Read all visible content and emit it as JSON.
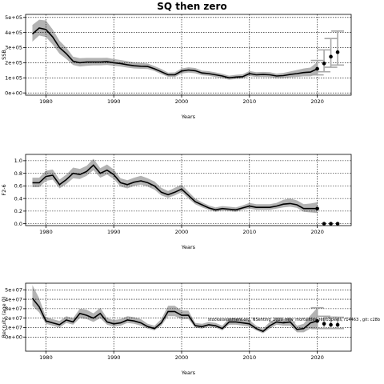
{
  "figure_title": "SQ then zero",
  "footnote": "stockassessment.org, NSehting_2020_new_mortalities_retro3peels, r14463 , git: c28b",
  "chart_data": [
    {
      "type": "line",
      "ylabel": "SSB",
      "xlabel": "Years",
      "xlim": [
        1977,
        2025
      ],
      "ylim": [
        -15000,
        520000
      ],
      "grid": true,
      "xticks": [
        1980,
        1990,
        2000,
        2010,
        2020
      ],
      "xtick_labels": [
        "1980",
        "1990",
        "2000",
        "2010",
        "2020"
      ],
      "yticks": [
        0,
        100000,
        200000,
        300000,
        400000,
        500000
      ],
      "ytick_labels": [
        "0e+00",
        "1e+05",
        "2e+05",
        "3e+05",
        "4e+05",
        "5e+05"
      ],
      "x": [
        1978,
        1979,
        1980,
        1981,
        1982,
        1983,
        1984,
        1985,
        1986,
        1987,
        1988,
        1989,
        1990,
        1991,
        1992,
        1993,
        1994,
        1995,
        1996,
        1997,
        1998,
        1999,
        2000,
        2001,
        2002,
        2003,
        2004,
        2005,
        2006,
        2007,
        2008,
        2009,
        2010,
        2011,
        2012,
        2013,
        2014,
        2015,
        2016,
        2017,
        2018,
        2019,
        2020
      ],
      "y": [
        390000,
        430000,
        420000,
        370000,
        300000,
        260000,
        210000,
        200000,
        205000,
        205000,
        205000,
        207000,
        200000,
        195000,
        187000,
        180000,
        177000,
        175000,
        160000,
        140000,
        120000,
        120000,
        145000,
        152000,
        147000,
        132000,
        128000,
        120000,
        112000,
        100000,
        105000,
        108000,
        128000,
        120000,
        122000,
        120000,
        112000,
        115000,
        122000,
        128000,
        135000,
        138000,
        160000
      ],
      "lower": [
        340000,
        380000,
        370000,
        320000,
        260000,
        225000,
        185000,
        175000,
        180000,
        182000,
        182000,
        185000,
        180000,
        175000,
        168000,
        162000,
        160000,
        158000,
        145000,
        125000,
        107000,
        106000,
        128000,
        135000,
        130000,
        117000,
        113000,
        106000,
        98000,
        88000,
        92000,
        95000,
        112000,
        105000,
        106000,
        104000,
        97000,
        98000,
        103000,
        106000,
        110000,
        110000,
        125000
      ],
      "upper": [
        450000,
        485000,
        480000,
        420000,
        345000,
        300000,
        240000,
        230000,
        232000,
        232000,
        232000,
        233000,
        225000,
        218000,
        210000,
        202000,
        198000,
        195000,
        178000,
        158000,
        135000,
        136000,
        162000,
        170000,
        165000,
        148000,
        144000,
        136000,
        127000,
        114000,
        120000,
        124000,
        145000,
        137000,
        139000,
        137000,
        128000,
        133000,
        142000,
        152000,
        162000,
        168000,
        205000
      ],
      "forecast_x": [
        2020,
        2021,
        2022,
        2023
      ],
      "forecast_y": [
        160000,
        195000,
        240000,
        270000
      ],
      "forecast_lower": [
        120000,
        140000,
        170000,
        185000
      ],
      "forecast_upper": [
        215000,
        285000,
        360000,
        410000
      ]
    },
    {
      "type": "line",
      "ylabel": "F2-6",
      "xlabel": "Years",
      "xlim": [
        1977,
        2025
      ],
      "ylim": [
        -0.03,
        1.1
      ],
      "grid": true,
      "xticks": [
        1980,
        1990,
        2000,
        2010,
        2020
      ],
      "xtick_labels": [
        "1980",
        "1990",
        "2000",
        "2010",
        "2020"
      ],
      "yticks": [
        0,
        0.2,
        0.4,
        0.6,
        0.8,
        1.0
      ],
      "ytick_labels": [
        "0.0",
        "0.2",
        "0.4",
        "0.6",
        "0.8",
        "1.0"
      ],
      "x": [
        1978,
        1979,
        1980,
        1981,
        1982,
        1983,
        1984,
        1985,
        1986,
        1987,
        1988,
        1989,
        1990,
        1991,
        1992,
        1993,
        1994,
        1995,
        1996,
        1997,
        1998,
        1999,
        2000,
        2001,
        2002,
        2003,
        2004,
        2005,
        2006,
        2007,
        2008,
        2009,
        2010,
        2011,
        2012,
        2013,
        2014,
        2015,
        2016,
        2017,
        2018,
        2019,
        2020
      ],
      "y": [
        0.65,
        0.65,
        0.75,
        0.77,
        0.62,
        0.7,
        0.8,
        0.78,
        0.83,
        0.93,
        0.8,
        0.85,
        0.78,
        0.65,
        0.62,
        0.66,
        0.68,
        0.65,
        0.6,
        0.5,
        0.46,
        0.5,
        0.55,
        0.45,
        0.35,
        0.3,
        0.25,
        0.22,
        0.24,
        0.23,
        0.22,
        0.25,
        0.28,
        0.26,
        0.26,
        0.26,
        0.28,
        0.31,
        0.32,
        0.3,
        0.24,
        0.24,
        0.24
      ],
      "lower": [
        0.58,
        0.58,
        0.68,
        0.7,
        0.56,
        0.63,
        0.72,
        0.71,
        0.76,
        0.85,
        0.73,
        0.78,
        0.71,
        0.59,
        0.56,
        0.6,
        0.62,
        0.59,
        0.54,
        0.45,
        0.41,
        0.45,
        0.5,
        0.4,
        0.31,
        0.26,
        0.22,
        0.19,
        0.21,
        0.2,
        0.19,
        0.22,
        0.24,
        0.22,
        0.22,
        0.22,
        0.24,
        0.26,
        0.27,
        0.25,
        0.19,
        0.18,
        0.17
      ],
      "upper": [
        0.73,
        0.73,
        0.84,
        0.86,
        0.7,
        0.78,
        0.89,
        0.87,
        0.92,
        1.03,
        0.88,
        0.94,
        0.86,
        0.72,
        0.69,
        0.73,
        0.76,
        0.72,
        0.67,
        0.57,
        0.52,
        0.57,
        0.62,
        0.51,
        0.4,
        0.34,
        0.29,
        0.26,
        0.28,
        0.27,
        0.26,
        0.29,
        0.33,
        0.31,
        0.31,
        0.31,
        0.33,
        0.38,
        0.4,
        0.37,
        0.31,
        0.32,
        0.34
      ],
      "forecast_x": [
        2020,
        2021,
        2022,
        2023
      ],
      "forecast_y": [
        0.24,
        0.0,
        0.0,
        0.0
      ]
    },
    {
      "type": "line",
      "ylabel": "Recruits (age 0)",
      "xlabel": "Years",
      "xlim": [
        1977,
        2025
      ],
      "ylim": [
        -1.5,
        5.7
      ],
      "grid": true,
      "xticks": [
        1980,
        1990,
        2000,
        2010,
        2020
      ],
      "xtick_labels": [
        "1980",
        "1990",
        "2000",
        "2010",
        "2020"
      ],
      "yticks": [
        0,
        1,
        2,
        3,
        4,
        5
      ],
      "ytick_labels": [
        "0e+00",
        "1e+07",
        "2e+07",
        "3e+07",
        "4e+07",
        "5e+07"
      ],
      "x": [
        1978,
        1979,
        1980,
        1981,
        1982,
        1983,
        1984,
        1985,
        1986,
        1987,
        1988,
        1989,
        1990,
        1991,
        1992,
        1993,
        1994,
        1995,
        1996,
        1997,
        1998,
        1999,
        2000,
        2001,
        2002,
        2003,
        2004,
        2005,
        2006,
        2007,
        2008,
        2009,
        2010,
        2011,
        2012,
        2013,
        2014,
        2015,
        2016,
        2017,
        2018,
        2019,
        2020
      ],
      "y": [
        4.1,
        3.2,
        1.7,
        1.5,
        1.3,
        1.8,
        1.6,
        2.5,
        2.3,
        2.0,
        2.5,
        1.6,
        1.4,
        1.5,
        1.8,
        1.7,
        1.5,
        1.1,
        0.9,
        1.5,
        2.7,
        2.7,
        2.3,
        2.3,
        1.2,
        1.1,
        1.3,
        1.2,
        0.9,
        1.6,
        1.6,
        1.5,
        1.4,
        0.9,
        0.6,
        1.2,
        1.6,
        1.5,
        1.6,
        0.8,
        0.9,
        1.5,
        1.7
      ],
      "lower": [
        3.3,
        2.6,
        1.4,
        1.2,
        1.0,
        1.5,
        1.3,
        2.0,
        1.9,
        1.6,
        2.0,
        1.3,
        1.1,
        1.2,
        1.5,
        1.4,
        1.2,
        0.9,
        0.7,
        1.2,
        2.2,
        2.2,
        1.9,
        1.9,
        1.0,
        0.9,
        1.1,
        1.0,
        0.7,
        1.3,
        1.3,
        1.2,
        1.1,
        0.7,
        0.4,
        0.9,
        1.3,
        1.2,
        1.2,
        0.5,
        0.5,
        0.9,
        0.9
      ],
      "upper": [
        5.5,
        4.1,
        2.1,
        1.9,
        1.7,
        2.2,
        2.0,
        3.0,
        2.9,
        2.5,
        3.1,
        2.0,
        1.8,
        1.9,
        2.2,
        2.1,
        1.9,
        1.4,
        1.2,
        1.9,
        3.3,
        3.3,
        2.8,
        2.8,
        1.5,
        1.4,
        1.6,
        1.5,
        1.2,
        2.0,
        2.0,
        1.9,
        1.8,
        1.2,
        0.9,
        1.6,
        2.0,
        1.9,
        2.1,
        1.2,
        1.4,
        2.3,
        3.1
      ],
      "forecast_x": [
        2020,
        2021,
        2022,
        2023
      ],
      "forecast_y": [
        1.7,
        1.4,
        1.3,
        1.3
      ],
      "forecast_lower": [
        0.9,
        0.9,
        0.9,
        0.9
      ],
      "forecast_upper": [
        3.1,
        2.2,
        2.1,
        2.1
      ]
    }
  ]
}
